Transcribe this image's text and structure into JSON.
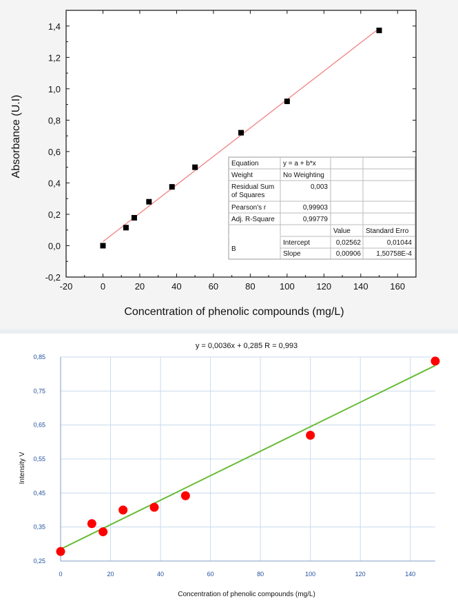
{
  "chart_data": [
    {
      "type": "scatter",
      "xlabel": "Concentration of phenolic compounds (mg/L)",
      "ylabel": "Absorbance (U.I)",
      "xlim": [
        -20,
        170
      ],
      "ylim": [
        -0.2,
        1.5
      ],
      "xticks": [
        "-20",
        "0",
        "20",
        "40",
        "60",
        "80",
        "100",
        "120",
        "140",
        "160"
      ],
      "yticks": [
        "-0,2",
        "0,0",
        "0,2",
        "0,4",
        "0,6",
        "0,8",
        "1,0",
        "1,2",
        "1,4"
      ],
      "grid": false,
      "colors": {
        "points": "#000000",
        "fit": "#f08080"
      },
      "points": [
        {
          "x": 0,
          "y": 0.0
        },
        {
          "x": 12.5,
          "y": 0.115
        },
        {
          "x": 17,
          "y": 0.178
        },
        {
          "x": 25,
          "y": 0.28
        },
        {
          "x": 37.5,
          "y": 0.375
        },
        {
          "x": 50,
          "y": 0.5
        },
        {
          "x": 75,
          "y": 0.72
        },
        {
          "x": 100,
          "y": 0.92
        },
        {
          "x": 150,
          "y": 1.372
        }
      ],
      "fit": {
        "intercept": 0.02562,
        "slope": 0.00906,
        "x_range": [
          0,
          150
        ]
      },
      "stats_table": {
        "equation_label": "Equation",
        "equation_value": "y = a + b*x",
        "weight_label": "Weight",
        "weight_value": "No Weighting",
        "rss_label": "Residual Sum of Squares",
        "rss_value": "0,003",
        "pearson_label": "Pearson's r",
        "pearson_value": "0,99903",
        "adjr_label": "Adj. R-Square",
        "adjr_value": "0,99779",
        "col_value": "Value",
        "col_error": "Standard Erro",
        "group_label": "B",
        "rows": [
          {
            "label": "Intercept",
            "value": "0,02562",
            "error": "0,01044"
          },
          {
            "label": "Slope",
            "value": "0,00906",
            "error": "1,50758E-4"
          }
        ]
      }
    },
    {
      "type": "scatter",
      "title": "y = 0,0036x + 0,285   R = 0,993",
      "xlabel": "Concentration of phenolic compounds (mg/L)",
      "ylabel": "Intensity V",
      "xlim": [
        0,
        150
      ],
      "ylim": [
        0.25,
        0.85
      ],
      "xticks": [
        "0",
        "20",
        "40",
        "60",
        "80",
        "100",
        "120",
        "140"
      ],
      "yticks": [
        "0,25",
        "0,35",
        "0,45",
        "0,55",
        "0,65",
        "0,75",
        "0,85"
      ],
      "grid": true,
      "colors": {
        "points": "#ff0000",
        "fit": "#66bb33",
        "grid": "#c9d9ee",
        "axis_text": "#1f4e9e"
      },
      "points": [
        {
          "x": 0,
          "y": 0.278
        },
        {
          "x": 12.5,
          "y": 0.36
        },
        {
          "x": 17,
          "y": 0.336
        },
        {
          "x": 25,
          "y": 0.4
        },
        {
          "x": 37.5,
          "y": 0.408
        },
        {
          "x": 50,
          "y": 0.442
        },
        {
          "x": 100,
          "y": 0.62
        },
        {
          "x": 150,
          "y": 0.838
        }
      ],
      "fit": {
        "intercept": 0.285,
        "slope": 0.0036,
        "x_range": [
          0,
          150
        ]
      }
    }
  ]
}
